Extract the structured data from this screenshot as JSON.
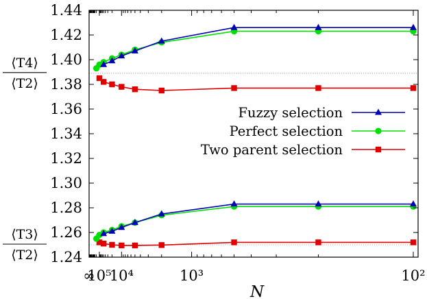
{
  "chart_data": {
    "type": "line",
    "xlabel": "N",
    "ylim": [
      1.24,
      1.44
    ],
    "yticks": [
      "1.24",
      "1.26",
      "1.28",
      "1.30",
      "1.32",
      "1.34",
      "1.36",
      "1.38",
      "1.40",
      "1.42",
      "1.44"
    ],
    "xaxis": {
      "scale": "reciprocal",
      "ticks": [
        {
          "label": "∞",
          "N": "inf"
        },
        {
          "label": "10⁵",
          "N": 100000
        },
        {
          "label": "10⁴",
          "N": 10000
        },
        {
          "label": "10³",
          "N": 1000
        },
        {
          "label": "10²",
          "N": 100
        }
      ]
    },
    "reference_lines": [
      {
        "y": 1.389,
        "style": "dotted"
      },
      {
        "y": 1.25,
        "style": "dotted"
      }
    ],
    "y_annotations": [
      {
        "numerator": "⟨T4⟩",
        "denominator": "⟨T2⟩",
        "y": 1.389
      },
      {
        "numerator": "⟨T3⟩",
        "denominator": "⟨T2⟩",
        "y": 1.25
      }
    ],
    "legend_position": "right-middle",
    "series": [
      {
        "name": "Fuzzy selection",
        "color": "#0000b4",
        "marker": "triangle",
        "curves": [
          {
            "N": [
              50000,
              20000,
              10000,
              5000,
              2000,
              500,
              200,
              100
            ],
            "y": [
              1.396,
              1.399,
              1.403,
              1.407,
              1.415,
              1.426,
              1.426,
              1.426
            ]
          },
          {
            "N": [
              50000,
              20000,
              10000,
              5000,
              2000,
              500,
              200,
              100
            ],
            "y": [
              1.259,
              1.261,
              1.264,
              1.268,
              1.275,
              1.283,
              1.283,
              1.283
            ]
          }
        ]
      },
      {
        "name": "Perfect selection",
        "color": "#00e000",
        "marker": "circle",
        "curves": [
          {
            "N": [
              200000,
              100000,
              50000,
              20000,
              10000,
              5000,
              2000,
              500,
              200,
              100
            ],
            "y": [
              1.393,
              1.396,
              1.398,
              1.401,
              1.404,
              1.408,
              1.414,
              1.423,
              1.423,
              1.423
            ]
          },
          {
            "N": [
              200000,
              100000,
              50000,
              20000,
              10000,
              5000,
              2000,
              500,
              200,
              100
            ],
            "y": [
              1.255,
              1.258,
              1.26,
              1.262,
              1.265,
              1.268,
              1.274,
              1.281,
              1.281,
              1.281
            ]
          }
        ]
      },
      {
        "name": "Two parent selection",
        "color": "#e00000",
        "marker": "square",
        "curves": [
          {
            "N": [
              100000,
              50000,
              20000,
              10000,
              5000,
              2000,
              500,
              200,
              100
            ],
            "y": [
              1.385,
              1.382,
              1.38,
              1.378,
              1.376,
              1.375,
              1.377,
              1.377,
              1.377
            ]
          },
          {
            "N": [
              100000,
              50000,
              20000,
              10000,
              5000,
              2000,
              500,
              200,
              100
            ],
            "y": [
              1.252,
              1.251,
              1.25,
              1.2495,
              1.2495,
              1.2498,
              1.252,
              1.252,
              1.252
            ]
          }
        ]
      }
    ]
  }
}
